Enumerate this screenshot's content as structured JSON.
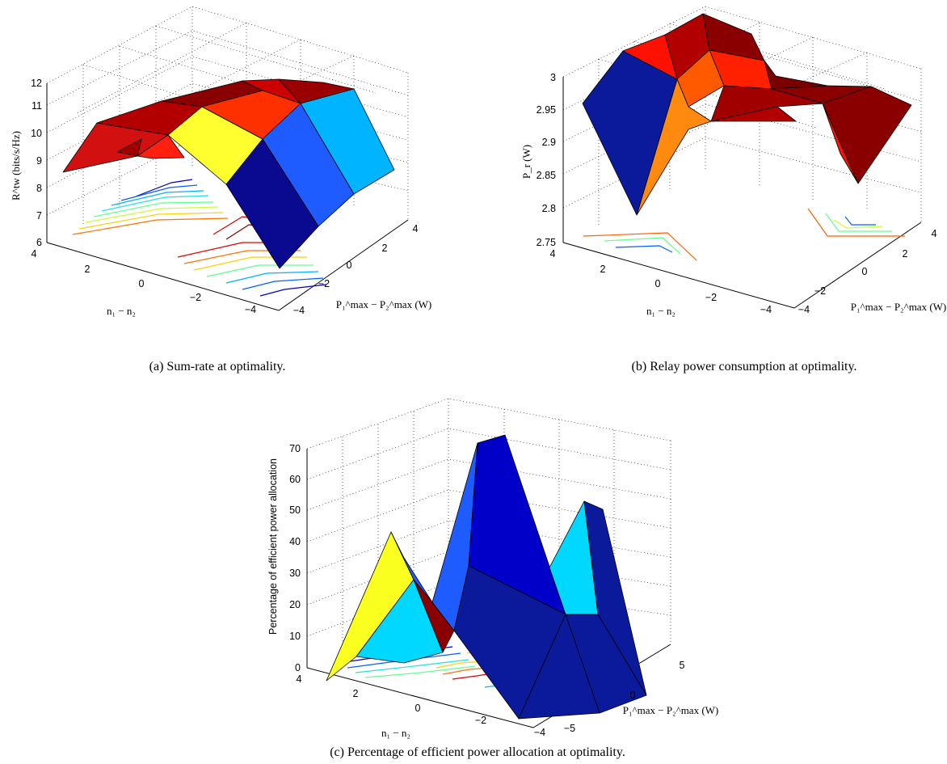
{
  "chart_data": [
    {
      "type": "surface",
      "caption": "(a) Sum-rate at optimality.",
      "xlabel": "n₁ − n₂",
      "ylabel": "P₁^max − P₂^max (W)",
      "zlabel": "R^tw (bits/s/Hz)",
      "x_ticks": [
        "4",
        "2",
        "0",
        "−2",
        "−4"
      ],
      "y_ticks": [
        "−4",
        "−2",
        "0",
        "2",
        "4"
      ],
      "z_ticks": [
        "6",
        "7",
        "8",
        "9",
        "10",
        "11",
        "12"
      ],
      "zlim": [
        6,
        12
      ],
      "x": [
        4,
        2,
        0,
        -2,
        -4
      ],
      "y": [
        -4,
        -2,
        0,
        2,
        4
      ],
      "z": [
        [
          8.5,
          9.4,
          10.2,
          10.5,
          10.6
        ],
        [
          9.0,
          9.8,
          10.6,
          10.9,
          11.0
        ],
        [
          9.1,
          10.1,
          10.9,
          11.3,
          11.4
        ],
        [
          8.2,
          9.4,
          10.6,
          11.1,
          11.2
        ],
        [
          6.3,
          7.8,
          9.1,
          10.1,
          10.3
        ]
      ],
      "contours": true,
      "colormap": "jet",
      "grid": true
    },
    {
      "type": "surface",
      "caption": "(b) Relay power consumption at optimality.",
      "xlabel": "n₁ − n₂",
      "ylabel": "P₁^max − P₂^max (W)",
      "zlabel": "P_r (W)",
      "x_ticks": [
        "4",
        "2",
        "0",
        "−2",
        "−4"
      ],
      "y_ticks": [
        "−4",
        "−2",
        "0",
        "2",
        "4"
      ],
      "z_ticks": [
        "2.75",
        "2.8",
        "2.85",
        "2.9",
        "2.95",
        "3"
      ],
      "zlim": [
        2.75,
        3.0
      ],
      "x": [
        4,
        2,
        0,
        -2,
        -4
      ],
      "y": [
        -4,
        -2,
        0,
        2,
        4
      ],
      "z": [
        [
          2.95,
          2.99,
          3.0,
          2.99,
          2.96
        ],
        [
          2.79,
          2.97,
          2.99,
          2.98,
          2.95
        ],
        [
          2.92,
          2.96,
          2.97,
          2.96,
          2.95
        ],
        [
          2.93,
          2.94,
          2.95,
          2.95,
          2.95
        ],
        [
          2.94,
          2.95,
          2.95,
          2.84,
          2.96
        ]
      ],
      "contours": true,
      "colormap": "jet",
      "grid": true
    },
    {
      "type": "surface",
      "caption": "(c) Percentage of efficient power allocation at optimality.",
      "xlabel": "n₁ − n₂",
      "ylabel": "P₁^max − P₂^max (W)",
      "zlabel": "Percentage of efficient power allocation",
      "x_ticks": [
        "4",
        "2",
        "0",
        "−2",
        "−4"
      ],
      "y_ticks": [
        "−5",
        "0",
        "5"
      ],
      "z_ticks": [
        "0",
        "10",
        "20",
        "30",
        "40",
        "50",
        "60",
        "70"
      ],
      "zlim": [
        0,
        70
      ],
      "x": [
        4,
        2,
        0,
        -2,
        -4
      ],
      "y": [
        -4,
        -2,
        0,
        2,
        4
      ],
      "z": [
        [
          3,
          35,
          5,
          0,
          0
        ],
        [
          10,
          20,
          8,
          2,
          0
        ],
        [
          0,
          10,
          72,
          0,
          0
        ],
        [
          0,
          0,
          20,
          5,
          60
        ],
        [
          0,
          2,
          8,
          10,
          20
        ]
      ],
      "contours": true,
      "colormap": "jet",
      "grid": true
    }
  ]
}
